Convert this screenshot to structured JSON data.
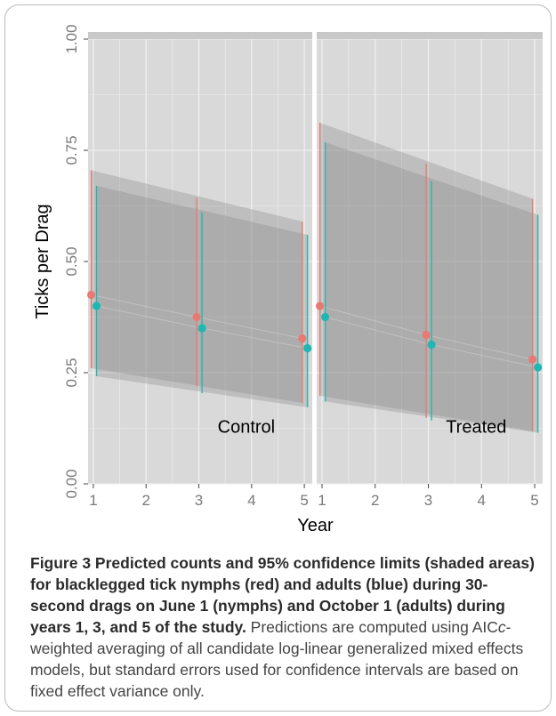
{
  "chart_data": {
    "type": "scatter",
    "x": [
      1,
      3,
      5
    ],
    "ylabel": "Ticks per Drag",
    "xlabel": "Year",
    "ylim": [
      0,
      1
    ],
    "yticks": [
      "0.00",
      "0.25",
      "0.50",
      "0.75",
      "1.00"
    ],
    "xticks": [
      "1",
      "2",
      "3",
      "4",
      "5"
    ],
    "xlim": [
      0.9,
      5.15
    ],
    "grid": true,
    "colors": {
      "nymphs": "#e87a74",
      "adults": "#1fb7b2",
      "band": "#8a8a8a",
      "panel": "#d9d9d9",
      "grid": "#efefef"
    },
    "panels": [
      {
        "label": "Control",
        "series": [
          {
            "key": "nymphs",
            "offset": -0.04,
            "values": [
              0.425,
              0.375,
              0.327
            ],
            "lower": [
              0.26,
              0.22,
              0.182
            ],
            "upper": [
              0.705,
              0.643,
              0.59
            ]
          },
          {
            "key": "adults",
            "offset": 0.06,
            "values": [
              0.4,
              0.35,
              0.305
            ],
            "lower": [
              0.242,
              0.204,
              0.172
            ],
            "upper": [
              0.67,
              0.61,
              0.56
            ]
          }
        ]
      },
      {
        "label": "Treated",
        "series": [
          {
            "key": "nymphs",
            "offset": -0.04,
            "values": [
              0.4,
              0.335,
              0.28
            ],
            "lower": [
              0.198,
              0.148,
              0.118
            ],
            "upper": [
              0.812,
              0.72,
              0.641
            ]
          },
          {
            "key": "adults",
            "offset": 0.06,
            "values": [
              0.375,
              0.313,
              0.262
            ],
            "lower": [
              0.185,
              0.142,
              0.115
            ],
            "upper": [
              0.768,
              0.68,
              0.605
            ]
          }
        ]
      }
    ]
  },
  "caption": {
    "lead": "Figure 3 Predicted counts and 95% confidence limits (shaded areas) for blacklegged tick nymphs (red) and adults (blue) during 30-second drags on June 1 (nymphs) and October 1 (adults) during years 1, 3, and 5 of the study.",
    "body_1": " Predictions are computed using AIC",
    "body_italic": "c",
    "body_2": "-weighted averaging of all candidate log-linear generalized mixed effects models, but standard errors used for confidence intervals are based on fixed effect variance only."
  }
}
